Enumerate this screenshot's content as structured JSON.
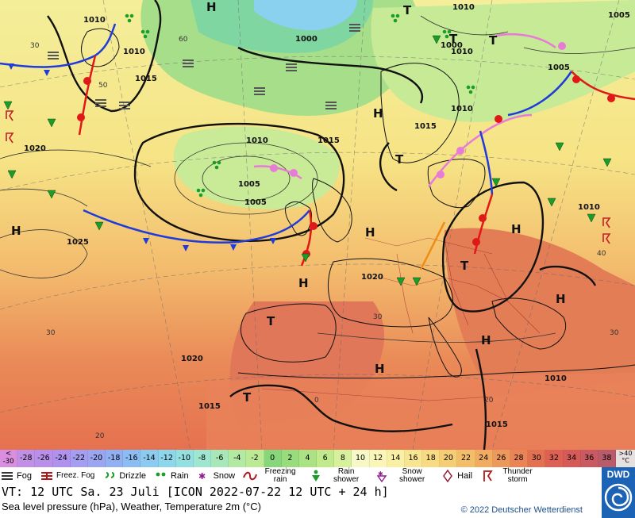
{
  "map": {
    "isobar_labels": [
      "1010",
      "1010",
      "1015",
      "1010",
      "1010",
      "1005",
      "1010",
      "1015",
      "1010",
      "1005",
      "1005",
      "1015",
      "1020",
      "1025",
      "1020",
      "1020",
      "1015",
      "1015",
      "1010",
      "1000",
      "1010",
      "1000",
      "1005"
    ],
    "pressure_centers": [
      "H",
      "H",
      "H",
      "H",
      "H",
      "H",
      "H",
      "H",
      "H",
      "T",
      "T",
      "T",
      "T",
      "T",
      "T",
      "T"
    ],
    "temp_labels": [
      "30",
      "20",
      "0",
      "30",
      "40",
      "30",
      "60",
      "50",
      "30",
      "20"
    ]
  },
  "scale": {
    "values": [
      "-30",
      "-28",
      "-26",
      "-24",
      "-22",
      "-20",
      "-18",
      "-16",
      "-14",
      "-12",
      "-10",
      "-8",
      "-6",
      "-4",
      "-2",
      "0",
      "2",
      "4",
      "6",
      "8",
      "10",
      "12",
      "14",
      "16",
      "18",
      "20",
      "22",
      "24",
      "26",
      "28",
      "30",
      "32",
      "34",
      "36",
      "38"
    ],
    "colors": [
      "#c68ee0",
      "#c090e6",
      "#b890ea",
      "#ae92ee",
      "#a59ef0",
      "#9aa6f0",
      "#91b0f2",
      "#8cbdf2",
      "#8ccaf0",
      "#8ed6ea",
      "#94e0e0",
      "#9ee6d0",
      "#a8e8b8",
      "#b2eaa4",
      "#bcea94",
      "#88d67a",
      "#98dc7e",
      "#abe384",
      "#c0ea8c",
      "#d6f09c",
      "#f6f8c8",
      "#fbf6b8",
      "#f9f0a4",
      "#f8e592",
      "#f7da82",
      "#f5cd74",
      "#f3be6a",
      "#f1ac62",
      "#ee995c",
      "#ea8456",
      "#e47052",
      "#dd6052",
      "#d55a58",
      "#c95a62",
      "#b85c6c"
    ],
    "lt_label": "<",
    "lt_value": "-30",
    "gt_label": ">40",
    "unit": "°C"
  },
  "weather_legend": [
    {
      "label": "Fog",
      "icon": "fog-icon"
    },
    {
      "label": "Freez. Fog",
      "icon": "freezing-fog-icon"
    },
    {
      "label": "Drizzle",
      "icon": "drizzle-icon"
    },
    {
      "label": "Rain",
      "icon": "rain-icon"
    },
    {
      "label": "Snow",
      "icon": "snow-icon"
    },
    {
      "label": "Freezing rain",
      "icon": "freezing-rain-icon"
    },
    {
      "label": "Rain shower",
      "icon": "rain-shower-icon"
    },
    {
      "label": "Snow shower",
      "icon": "snow-shower-icon"
    },
    {
      "label": "Hail",
      "icon": "hail-icon"
    },
    {
      "label": "Thunder storm",
      "icon": "thunderstorm-icon"
    }
  ],
  "info": {
    "valid_time": "VT: 12 UTC Sa.  23 Juli [ICON 2022-07-22  12 UTC + 24 h]",
    "description": "Sea level pressure (hPa), Weather, Temperature 2m (°C)",
    "copyright": "© 2022 Deutscher Wetterdienst",
    "logo_text": "DWD"
  }
}
